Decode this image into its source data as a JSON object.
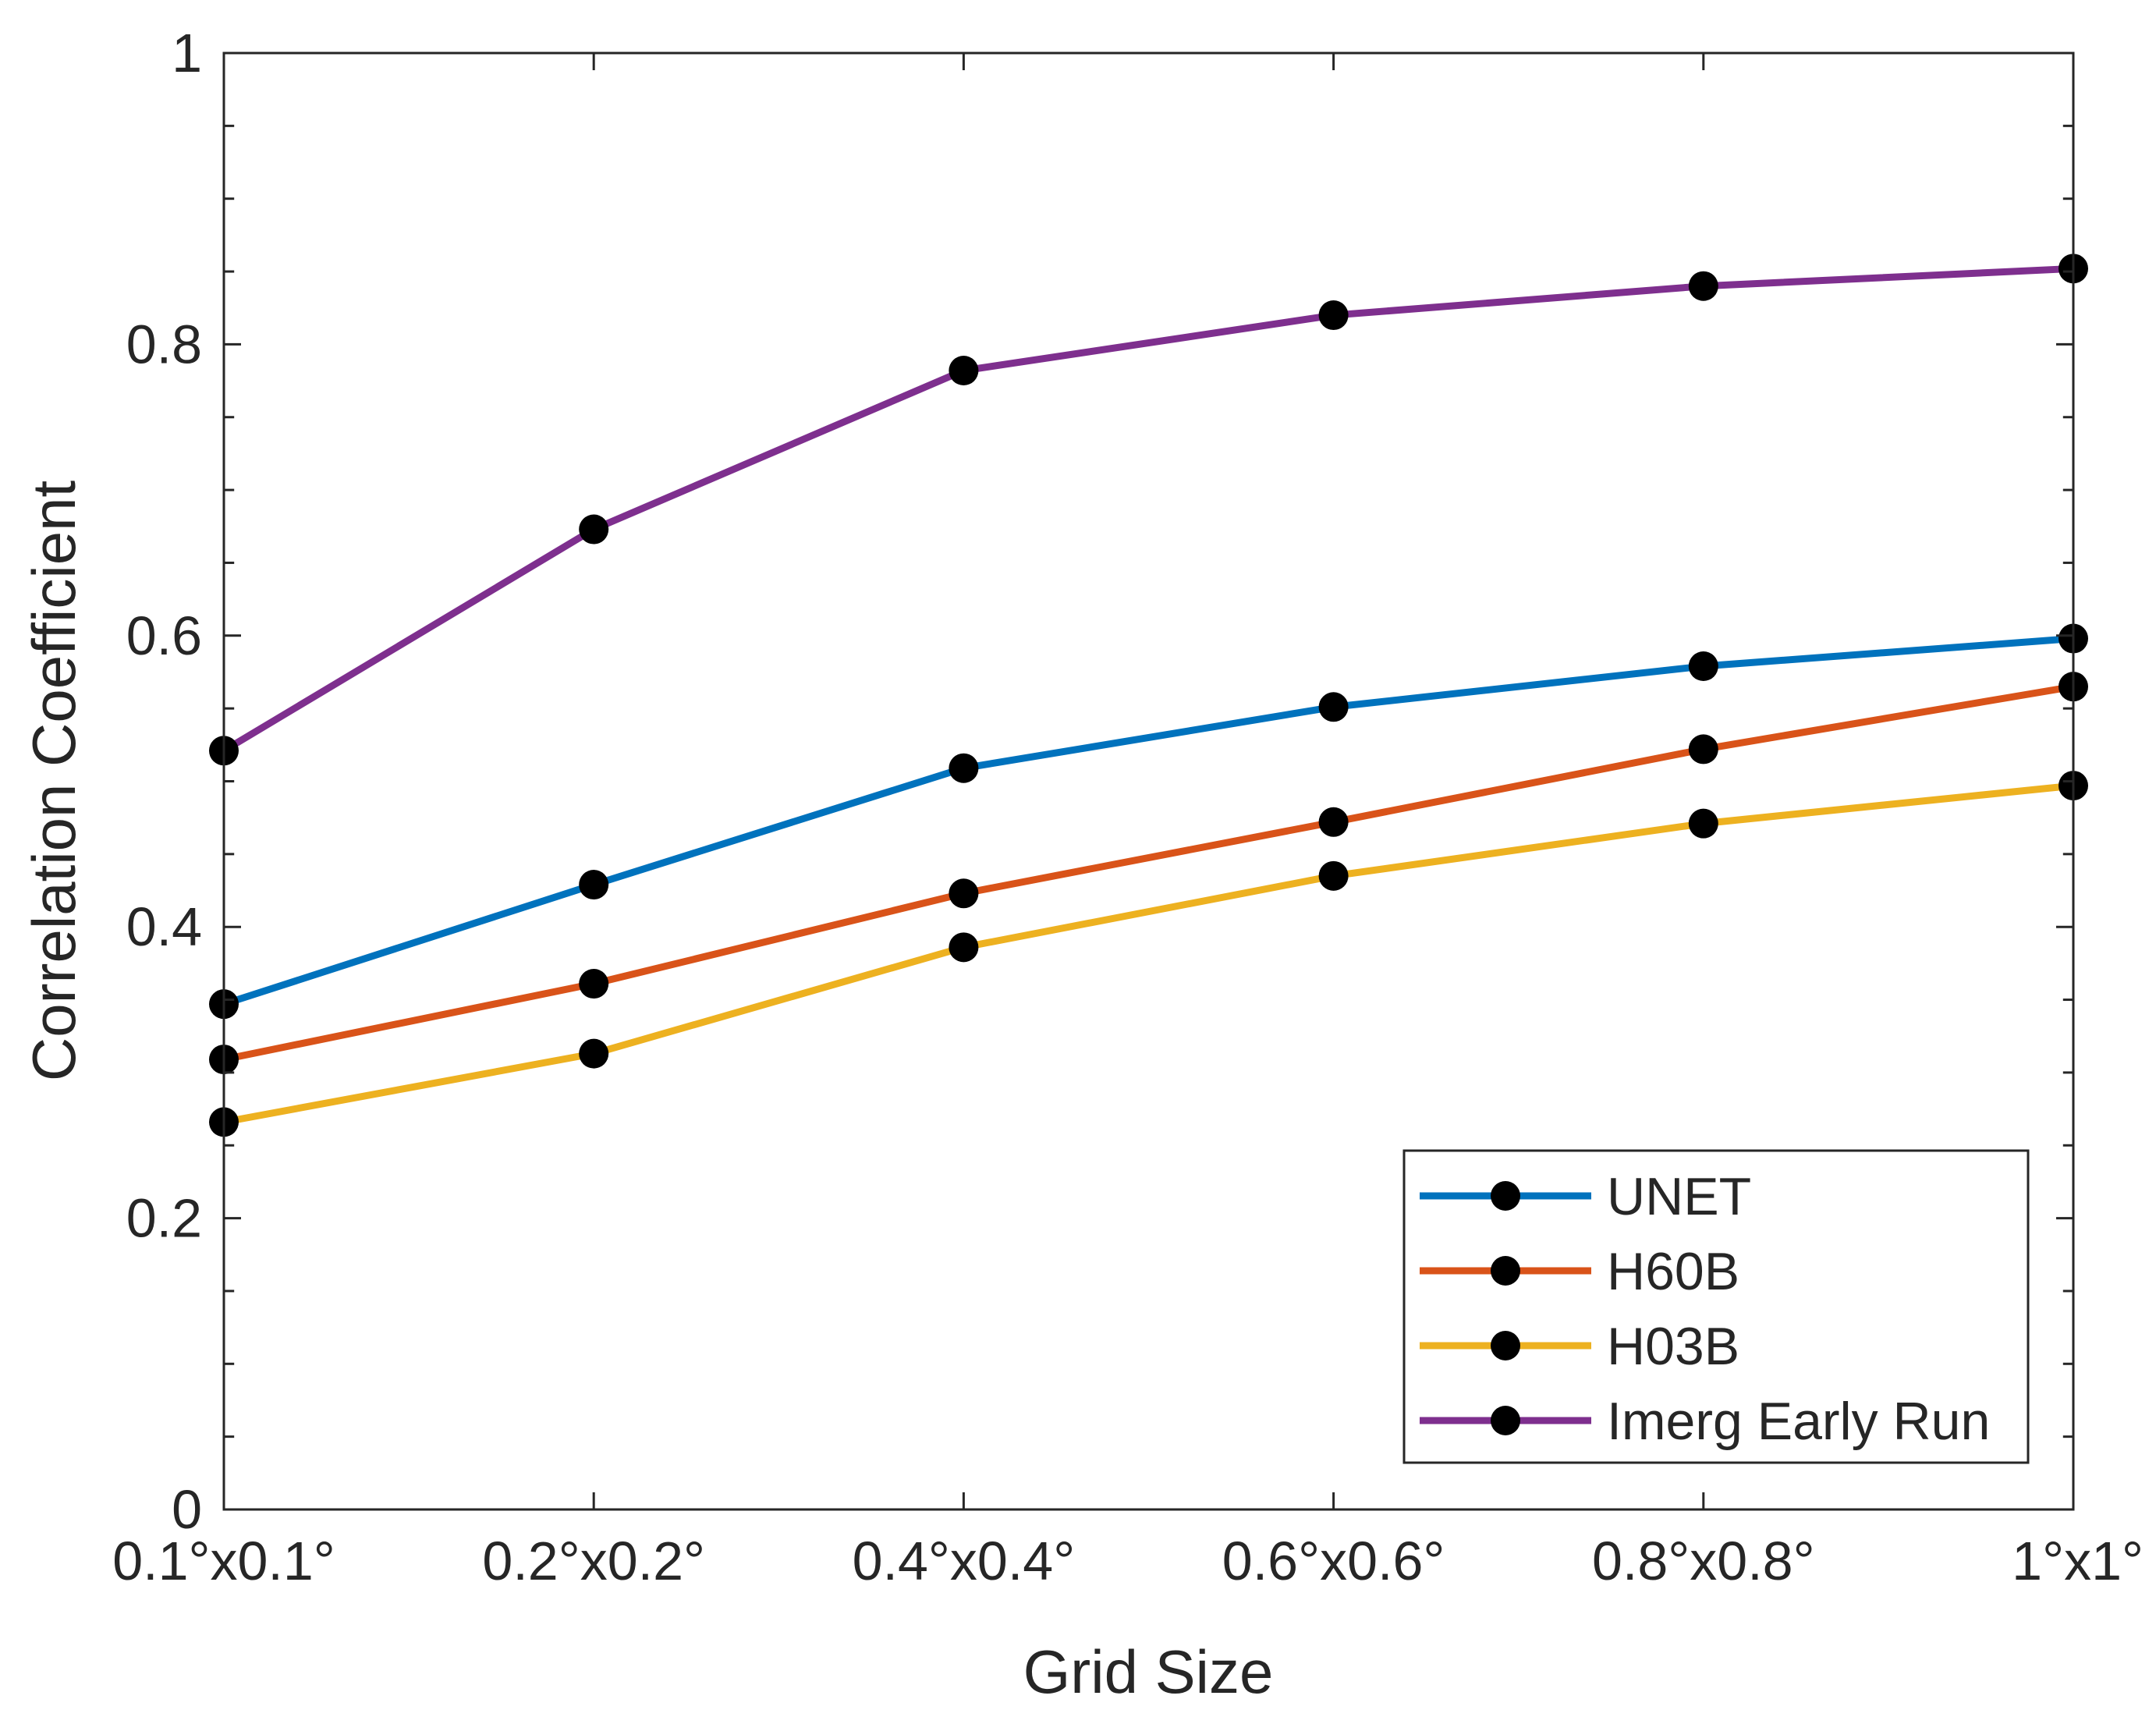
{
  "chart_data": {
    "type": "line",
    "title": "",
    "xlabel": "Grid Size",
    "ylabel": "Correlation Coefficient",
    "categories": [
      "0.1°x0.1°",
      "0.2°x0.2°",
      "0.4°x0.4°",
      "0.6°x0.6°",
      "0.8°x0.8°",
      "1°x1°"
    ],
    "ylim": [
      0,
      1
    ],
    "yticks": [
      0,
      0.2,
      0.4,
      0.6,
      0.8,
      1
    ],
    "ytick_labels": [
      "0",
      "0.2",
      "0.4",
      "0.6",
      "0.8",
      "1"
    ],
    "grid": false,
    "legend_position": "bottom-right",
    "marker_color": "#000000",
    "series": [
      {
        "name": "UNET",
        "color": "#0072BD",
        "values": [
          0.347,
          0.429,
          0.509,
          0.551,
          0.579,
          0.598
        ]
      },
      {
        "name": "H60B",
        "color": "#D95319",
        "values": [
          0.309,
          0.361,
          0.423,
          0.472,
          0.522,
          0.565
        ]
      },
      {
        "name": "H03B",
        "color": "#EDB120",
        "values": [
          0.266,
          0.313,
          0.386,
          0.435,
          0.471,
          0.497
        ]
      },
      {
        "name": "Imerg Early Run",
        "color": "#7E2F8E",
        "values": [
          0.521,
          0.673,
          0.782,
          0.82,
          0.84,
          0.852
        ]
      }
    ]
  }
}
